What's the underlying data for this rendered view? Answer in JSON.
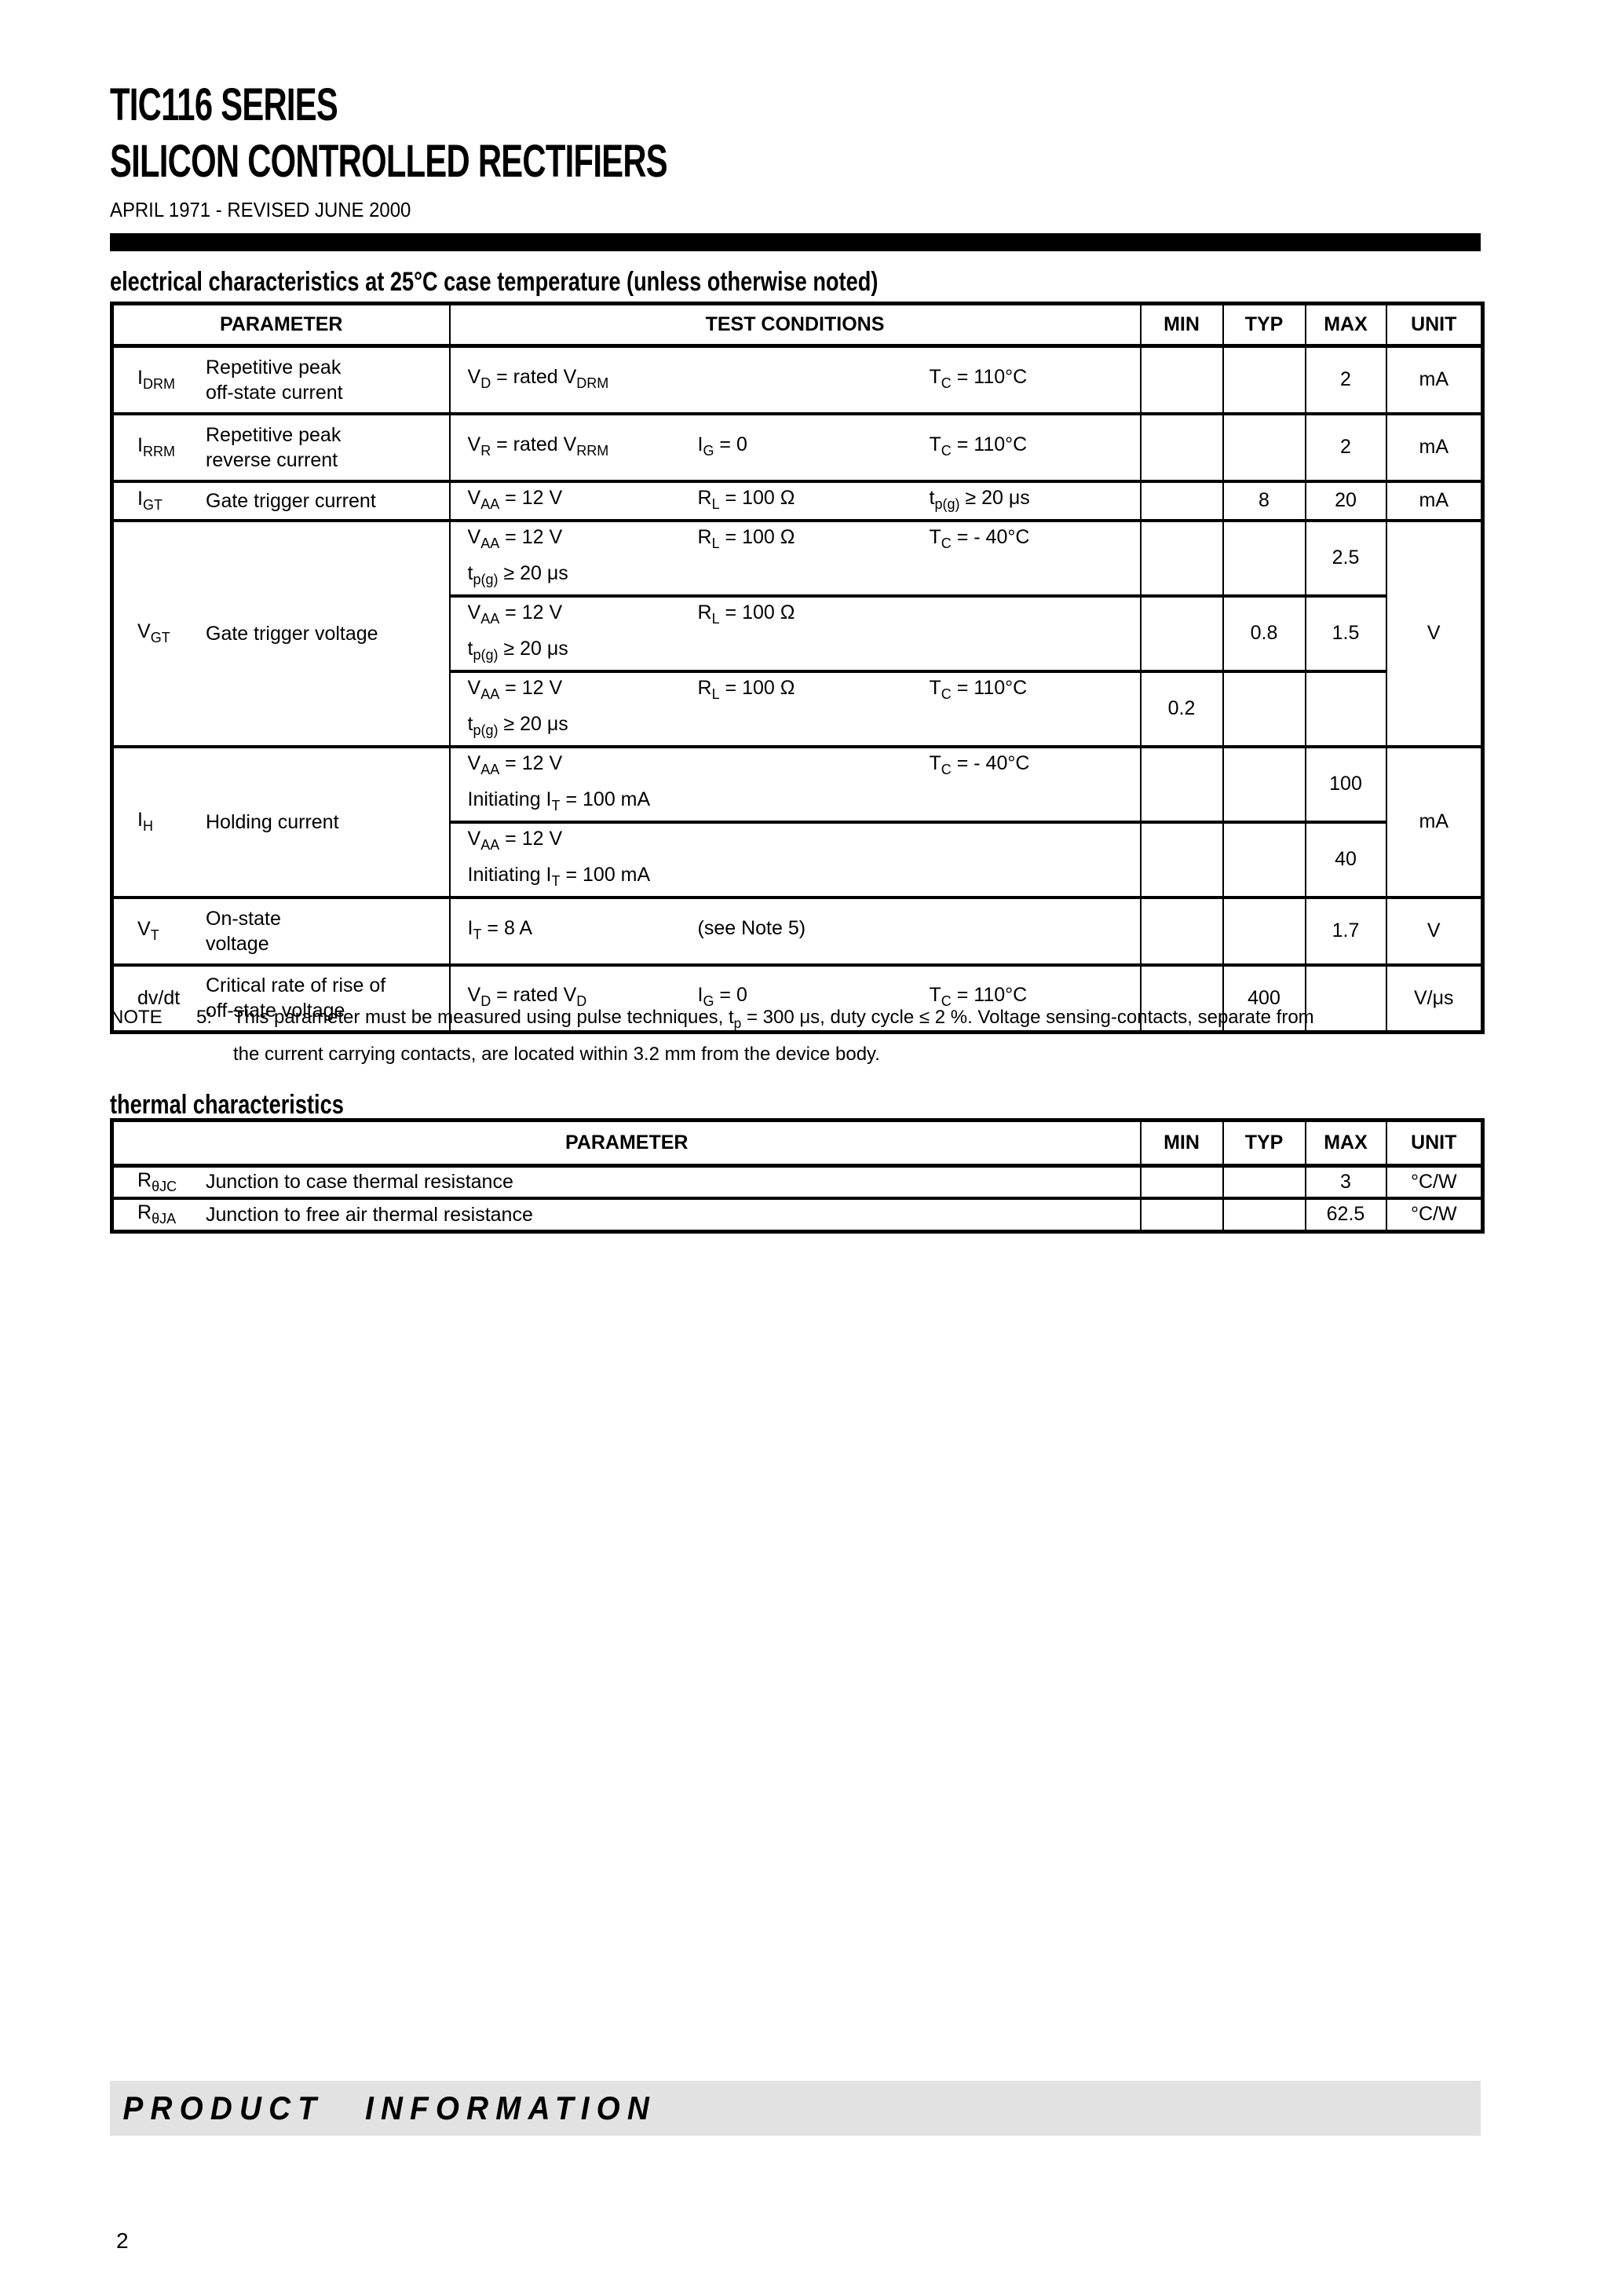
{
  "header": {
    "title_line1": "TIC116 SERIES",
    "title_line2": "SILICON CONTROLLED RECTIFIERS",
    "date_line": "APRIL 1971 - REVISED JUNE 2000"
  },
  "colors": {
    "banner_background": "#e2e2e2",
    "rule_black": "#000000"
  },
  "electrical": {
    "heading": "electrical characteristics at 25°C case temperature (unless otherwise noted)",
    "columns": {
      "parameter": "PARAMETER",
      "test_conditions": "TEST CONDITIONS",
      "min": "MIN",
      "typ": "TYP",
      "max": "MAX",
      "unit": "UNIT"
    },
    "rows": [
      {
        "symbol": "I_{DRM}",
        "name": [
          "Repetitive peak",
          "off-state current"
        ],
        "unit": "mA",
        "sub": [
          {
            "lines": [
              [
                "V_{D} = rated V_{DRM}",
                "",
                "T_{C} = 110°C"
              ]
            ],
            "min": "",
            "typ": "",
            "max": "2"
          }
        ]
      },
      {
        "symbol": "I_{RRM}",
        "name": [
          "Repetitive peak",
          "reverse current"
        ],
        "unit": "mA",
        "sub": [
          {
            "lines": [
              [
                "V_{R} = rated V_{RRM}",
                "I_{G} = 0",
                "T_{C} = 110°C"
              ]
            ],
            "min": "",
            "typ": "",
            "max": "2"
          }
        ]
      },
      {
        "symbol": "I_{GT}",
        "name": [
          "Gate trigger current"
        ],
        "unit": "mA",
        "sub": [
          {
            "lines": [
              [
                "V_{AA} = 12 V",
                "R_{L} = 100 Ω",
                "t_{p(g)} ≥ 20 μs"
              ]
            ],
            "min": "",
            "typ": "8",
            "max": "20"
          }
        ]
      },
      {
        "symbol": "V_{GT}",
        "name": [
          "Gate trigger voltage"
        ],
        "unit": "V",
        "sub": [
          {
            "lines": [
              [
                "V_{AA} = 12 V",
                "R_{L} = 100 Ω",
                "T_{C} = - 40°C"
              ],
              [
                "t_{p(g)} ≥ 20 μs"
              ]
            ],
            "min": "",
            "typ": "",
            "max": "2.5"
          },
          {
            "lines": [
              [
                "V_{AA} = 12 V",
                "R_{L} = 100 Ω",
                ""
              ],
              [
                "t_{p(g)} ≥ 20 μs"
              ]
            ],
            "min": "",
            "typ": "0.8",
            "max": "1.5"
          },
          {
            "lines": [
              [
                "V_{AA} = 12 V",
                "R_{L} = 100 Ω",
                "T_{C} = 110°C"
              ],
              [
                "t_{p(g)} ≥ 20 μs"
              ]
            ],
            "min": "0.2",
            "typ": "",
            "max": ""
          }
        ]
      },
      {
        "symbol": "I_{H}",
        "name": [
          "Holding current"
        ],
        "unit": "mA",
        "sub": [
          {
            "lines": [
              [
                "V_{AA} = 12 V",
                "",
                "T_{C} = - 40°C"
              ],
              [
                "Initiating I_{T} = 100 mA"
              ]
            ],
            "min": "",
            "typ": "",
            "max": "100"
          },
          {
            "lines": [
              [
                "V_{AA} = 12 V",
                "",
                ""
              ],
              [
                "Initiating I_{T} = 100 mA"
              ]
            ],
            "min": "",
            "typ": "",
            "max": "40"
          }
        ]
      },
      {
        "symbol": "V_{T}",
        "name": [
          "On-state",
          "voltage"
        ],
        "unit": "V",
        "sub": [
          {
            "lines": [
              [
                "I_{T} = 8 A",
                "(see Note 5)",
                ""
              ]
            ],
            "min": "",
            "typ": "",
            "max": "1.7"
          }
        ]
      },
      {
        "symbol": "dv/dt",
        "name": [
          "Critical rate of rise of",
          "off-state voltage"
        ],
        "unit": "V/μs",
        "sub": [
          {
            "lines": [
              [
                "V_{D} = rated V_{D}",
                "I_{G} = 0",
                "T_{C} = 110°C"
              ]
            ],
            "min": "",
            "typ": "400",
            "max": ""
          }
        ]
      }
    ]
  },
  "note": {
    "label": "NOTE",
    "number": "5:",
    "line1": "This parameter must be measured using pulse techniques, t_{p} = 300 μs, duty cycle ≤ 2 %. Voltage sensing-contacts, separate from",
    "line2": "the current carrying contacts, are located within 3.2 mm from the device body."
  },
  "thermal": {
    "heading": "thermal characteristics",
    "columns": {
      "parameter": "PARAMETER",
      "min": "MIN",
      "typ": "TYP",
      "max": "MAX",
      "unit": "UNIT"
    },
    "rows": [
      {
        "symbol": "R_{θJC}",
        "name": "Junction to case thermal resistance",
        "min": "",
        "typ": "",
        "max": "3",
        "unit": "°C/W"
      },
      {
        "symbol": "R_{θJA}",
        "name": "Junction to free air thermal resistance",
        "min": "",
        "typ": "",
        "max": "62.5",
        "unit": "°C/W"
      }
    ]
  },
  "footer": {
    "banner": "PRODUCT INFORMATION",
    "page_number": "2"
  }
}
